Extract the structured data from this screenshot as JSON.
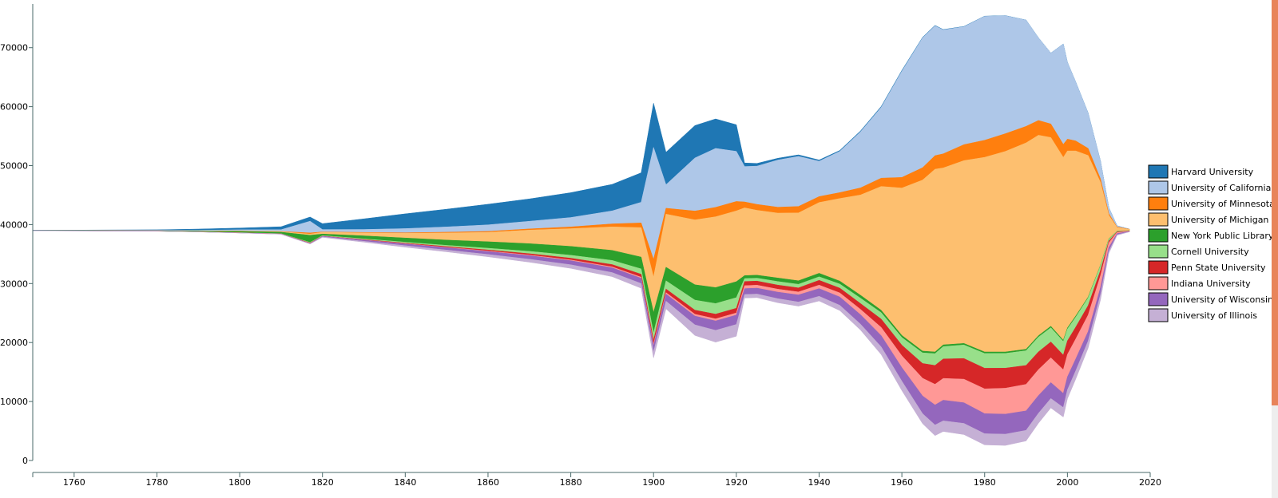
{
  "chart_data": {
    "type": "streamgraph",
    "title": "",
    "xlabel": "",
    "ylabel": "",
    "xlim": [
      1750,
      2020
    ],
    "ylim": [
      0,
      77000
    ],
    "baseline": 39000,
    "x_ticks": [
      1760,
      1780,
      1800,
      1820,
      1840,
      1860,
      1880,
      1900,
      1920,
      1940,
      1960,
      1980,
      2000,
      2020
    ],
    "y_ticks": [
      0,
      10000,
      20000,
      30000,
      40000,
      50000,
      60000,
      70000
    ],
    "x": [
      1750,
      1760,
      1770,
      1780,
      1790,
      1800,
      1810,
      1817,
      1820,
      1830,
      1840,
      1850,
      1860,
      1870,
      1880,
      1890,
      1897,
      1900,
      1903,
      1910,
      1915,
      1920,
      1922,
      1925,
      1930,
      1935,
      1940,
      1945,
      1950,
      1955,
      1960,
      1965,
      1968,
      1970,
      1975,
      1980,
      1985,
      1990,
      1993,
      1996,
      1999,
      2000,
      2002,
      2005,
      2008,
      2010,
      2012,
      2015
    ],
    "series": [
      {
        "name": "Harvard University",
        "color": "#1f77b4",
        "values": [
          50,
          60,
          80,
          100,
          200,
          300,
          500,
          700,
          1000,
          1800,
          2500,
          3000,
          3500,
          3800,
          4200,
          4500,
          5000,
          7500,
          5500,
          5500,
          5000,
          4500,
          600,
          450,
          300,
          250,
          200,
          150,
          150,
          150,
          150,
          100,
          80,
          60,
          50,
          40,
          30,
          20,
          20,
          20,
          20,
          15,
          10,
          10,
          10,
          10,
          5,
          5
        ]
      },
      {
        "name": "University of California",
        "color": "#aec7e8",
        "values": [
          20,
          30,
          40,
          60,
          100,
          200,
          300,
          2000,
          400,
          500,
          700,
          900,
          1100,
          1300,
          1600,
          2200,
          3500,
          19000,
          4000,
          9000,
          10000,
          8500,
          6000,
          6500,
          8000,
          8500,
          6000,
          7000,
          9500,
          12000,
          18000,
          22000,
          22000,
          21000,
          20000,
          21000,
          20000,
          18000,
          14000,
          12000,
          17000,
          13000,
          10000,
          6000,
          3000,
          1000,
          200,
          0
        ]
      },
      {
        "name": "University of Minnesota",
        "color": "#ff7f0e",
        "values": [
          5,
          5,
          10,
          10,
          20,
          30,
          40,
          200,
          60,
          80,
          100,
          130,
          160,
          200,
          300,
          500,
          800,
          3000,
          1000,
          1500,
          1600,
          1600,
          1000,
          1000,
          1000,
          1100,
          1000,
          1000,
          1200,
          1400,
          1800,
          2100,
          2300,
          2400,
          2700,
          2900,
          3000,
          2800,
          2500,
          2300,
          2200,
          2000,
          1700,
          1200,
          600,
          300,
          100,
          50
        ]
      },
      {
        "name": "University of Michigan",
        "color": "#fdbf6f",
        "values": [
          5,
          5,
          10,
          10,
          20,
          40,
          80,
          200,
          300,
          500,
          800,
          1200,
          1600,
          2300,
          3000,
          4000,
          5000,
          6000,
          9000,
          11000,
          12000,
          12000,
          11500,
          11000,
          11000,
          11500,
          12000,
          14000,
          17000,
          21000,
          25000,
          29000,
          31000,
          30000,
          31000,
          33000,
          34000,
          35000,
          34000,
          32000,
          31000,
          30000,
          28000,
          24000,
          14000,
          4000,
          600,
          200
        ]
      },
      {
        "name": "New York Public Library",
        "color": "#2ca02c",
        "values": [
          10,
          15,
          20,
          30,
          100,
          200,
          250,
          1200,
          250,
          500,
          700,
          900,
          1100,
          1300,
          1500,
          1700,
          2000,
          3500,
          2300,
          2600,
          2700,
          2700,
          500,
          500,
          600,
          600,
          600,
          500,
          500,
          400,
          350,
          300,
          280,
          280,
          260,
          260,
          250,
          250,
          250,
          250,
          220,
          200,
          200,
          150,
          100,
          60,
          30,
          10
        ]
      },
      {
        "name": "Cornell University",
        "color": "#98df8a",
        "values": [
          5,
          5,
          5,
          10,
          20,
          30,
          40,
          100,
          80,
          120,
          160,
          200,
          300,
          400,
          500,
          700,
          900,
          1200,
          1400,
          1700,
          1800,
          1800,
          500,
          500,
          600,
          600,
          600,
          700,
          900,
          1100,
          1300,
          1800,
          2000,
          2100,
          2300,
          2500,
          2500,
          2500,
          2500,
          2400,
          2300,
          2000,
          1700,
          1300,
          800,
          300,
          100,
          30
        ]
      },
      {
        "name": "Penn State University",
        "color": "#d62728",
        "values": [
          5,
          5,
          5,
          10,
          10,
          20,
          20,
          50,
          30,
          60,
          100,
          130,
          170,
          230,
          300,
          400,
          500,
          700,
          600,
          700,
          800,
          800,
          700,
          700,
          700,
          700,
          800,
          800,
          1000,
          1400,
          1800,
          2500,
          3200,
          3300,
          3500,
          3500,
          3400,
          3200,
          3000,
          2700,
          2500,
          2300,
          2000,
          1600,
          900,
          300,
          100,
          30
        ]
      },
      {
        "name": "Indiana University",
        "color": "#ff9896",
        "values": [
          2,
          2,
          4,
          5,
          5,
          10,
          10,
          30,
          20,
          30,
          40,
          60,
          80,
          100,
          120,
          150,
          180,
          300,
          250,
          300,
          350,
          350,
          500,
          500,
          500,
          500,
          600,
          700,
          900,
          1400,
          2000,
          3000,
          3500,
          3700,
          4000,
          4200,
          4400,
          4500,
          4400,
          4200,
          4000,
          3800,
          3400,
          2800,
          2000,
          800,
          200,
          50
        ]
      },
      {
        "name": "University of Wisconsin",
        "color": "#9467bd",
        "values": [
          2,
          2,
          3,
          4,
          5,
          10,
          20,
          50,
          100,
          200,
          300,
          400,
          500,
          600,
          700,
          800,
          900,
          1000,
          1200,
          1500,
          1600,
          1600,
          1000,
          1000,
          1100,
          1200,
          1300,
          1400,
          1600,
          1900,
          2300,
          3000,
          3400,
          3500,
          3500,
          3400,
          3400,
          3300,
          3000,
          2700,
          2400,
          2200,
          2000,
          1600,
          1200,
          600,
          200,
          50
        ]
      },
      {
        "name": "University of Illinois",
        "color": "#c5b0d5",
        "values": [
          2,
          2,
          3,
          4,
          5,
          10,
          20,
          50,
          80,
          150,
          250,
          300,
          400,
          500,
          600,
          700,
          800,
          1000,
          1300,
          1800,
          2000,
          2000,
          600,
          600,
          700,
          700,
          800,
          900,
          1000,
          1300,
          1600,
          1700,
          1800,
          1800,
          1900,
          1900,
          1900,
          1800,
          1700,
          1600,
          1600,
          1500,
          1400,
          1200,
          900,
          400,
          100,
          30
        ]
      }
    ],
    "legend_position": "right"
  }
}
